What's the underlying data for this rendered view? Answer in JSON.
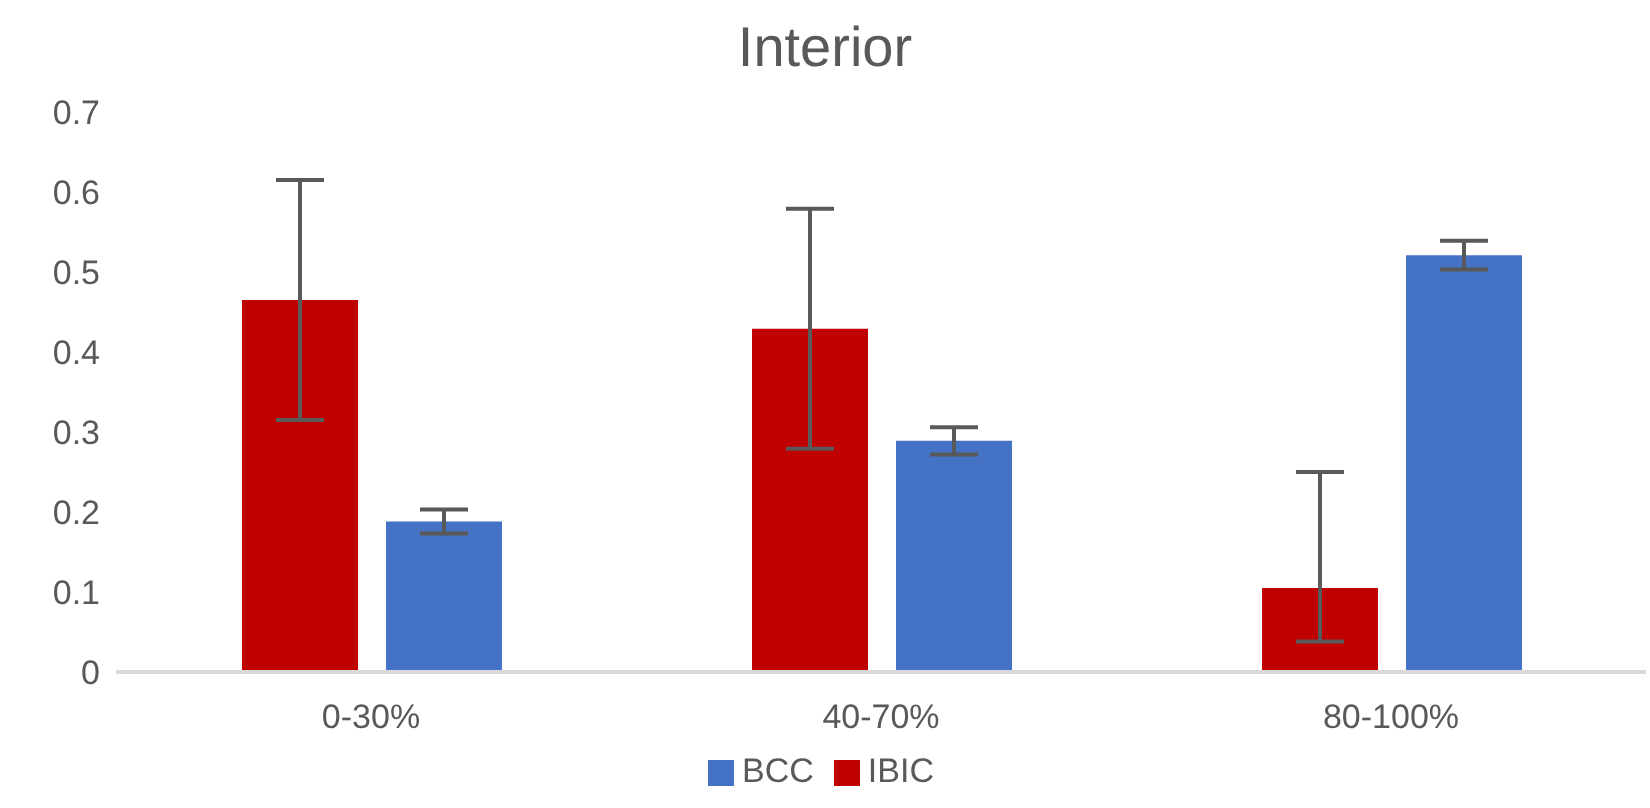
{
  "chart_data": {
    "type": "bar",
    "title": "Interior",
    "categories": [
      "0-30%",
      "40-70%",
      "80-100%"
    ],
    "series": [
      {
        "name": "IBIC",
        "color": "#c00000",
        "values": [
          0.465,
          0.429,
          0.105
        ],
        "errors": [
          0.15,
          0.15,
          [
            0.038,
            0.25
          ]
        ]
      },
      {
        "name": "BCC",
        "color": "#4472c4",
        "values": [
          0.188,
          0.289,
          0.521
        ],
        "errors": [
          0.015,
          0.017,
          0.018
        ]
      }
    ],
    "ylim": [
      0,
      0.7
    ],
    "yticks": [
      0,
      0.1,
      0.2,
      0.3,
      0.4,
      0.5,
      0.6,
      0.7
    ],
    "grid": false,
    "legend": "bottom"
  }
}
